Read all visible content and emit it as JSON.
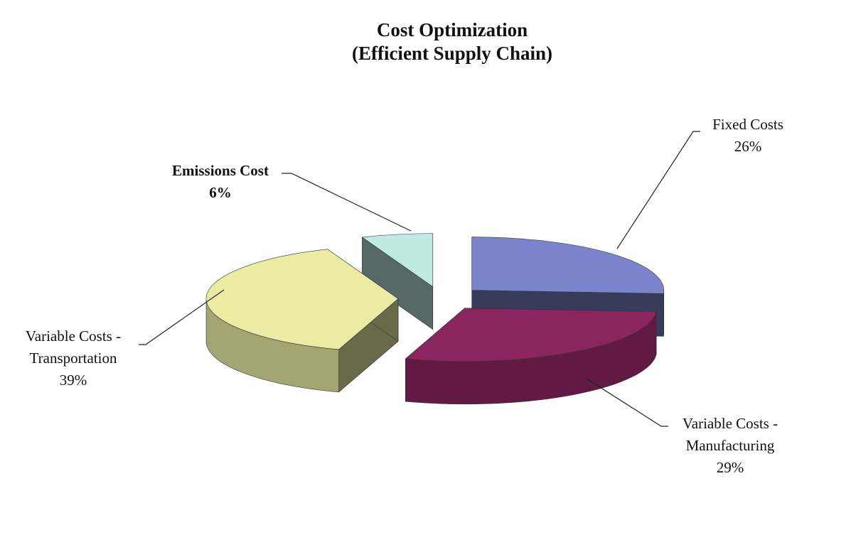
{
  "chart_data": {
    "type": "pie3d",
    "title": "Cost Optimization",
    "subtitle": "(Efficient Supply Chain)",
    "categories": [
      "Fixed Costs",
      "Variable Costs - Manufacturing",
      "Variable Costs - Transportation",
      "Emissions Cost"
    ],
    "values": [
      26,
      29,
      39,
      6
    ],
    "value_labels": [
      "26%",
      "29%",
      "39%",
      "6%"
    ],
    "colors": [
      "#7b83cc",
      "#8b2560",
      "#ebeba4",
      "#bfe9e3"
    ]
  }
}
